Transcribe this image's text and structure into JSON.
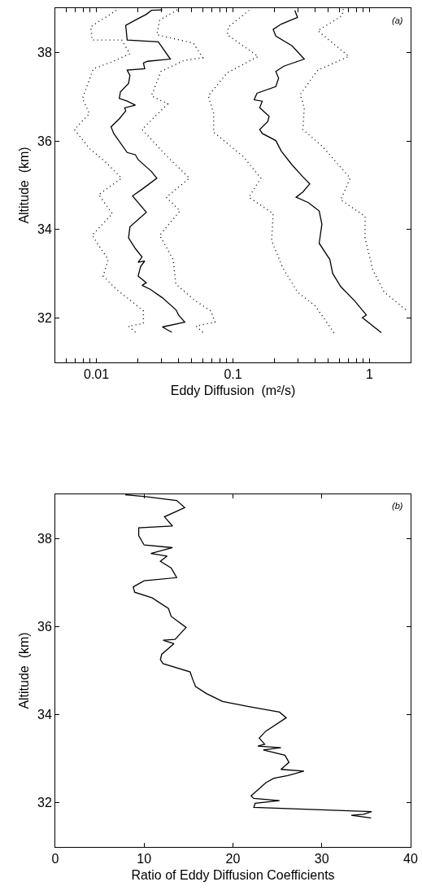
{
  "chart_data": [
    {
      "type": "line",
      "xlabel": "Eddy Diffusion  (m²/s)",
      "ylabel": "Altitude  (km)",
      "annotations": [
        "(a)"
      ],
      "log": "x",
      "grid": false,
      "marker": "none",
      "xlim": [
        0.005,
        2
      ],
      "ylim": [
        31,
        39
      ],
      "xticks": [
        {
          "value": 0.006,
          "label": null
        },
        {
          "value": 0.007,
          "label": null
        },
        {
          "value": 0.008,
          "label": null
        },
        {
          "value": 0.009,
          "label": null
        },
        0.01,
        {
          "value": 0.02,
          "label": null
        },
        {
          "value": 0.03,
          "label": null
        },
        {
          "value": 0.04,
          "label": null
        },
        {
          "value": 0.05,
          "label": null
        },
        {
          "value": 0.06,
          "label": null
        },
        {
          "value": 0.07,
          "label": null
        },
        {
          "value": 0.08,
          "label": null
        },
        {
          "value": 0.09,
          "label": null
        },
        0.1,
        {
          "value": 0.2,
          "label": null
        },
        {
          "value": 0.3,
          "label": null
        },
        {
          "value": 0.4,
          "label": null
        },
        {
          "value": 0.5,
          "label": null
        },
        {
          "value": 0.6,
          "label": null
        },
        {
          "value": 0.7,
          "label": null
        },
        {
          "value": 0.8,
          "label": null
        },
        {
          "value": 0.9,
          "label": null
        },
        1,
        {
          "value": 2,
          "label": null
        }
      ],
      "yticks": [
        32,
        34,
        36,
        38
      ],
      "series": [
        {
          "color": "#000000",
          "line_style": "solid",
          "x": [
            0.0357,
            0.0304,
            0.0444,
            0.04,
            0.0382,
            0.0304,
            0.0248,
            0.0216,
            0.0232,
            0.0202,
            0.0211,
            0.0226,
            0.0202,
            0.0216,
            0.0193,
            0.0172,
            0.0176,
            0.0232,
            0.0184,
            0.0216,
            0.0277,
            0.0253,
            0.0202,
            0.0193,
            0.0168,
            0.0134,
            0.0128,
            0.0147,
            0.0164,
            0.0161,
            0.0193,
            0.0168,
            0.0147,
            0.015,
            0.0172,
            0.0176,
            0.0168,
            0.0226,
            0.0221,
            0.0237,
            0.0348,
            0.0284,
            0.0168,
            0.0164,
            0.0193,
            0.0232,
            0.0253,
            0.0304
          ],
          "values": [
            31.68,
            31.8,
            31.91,
            32.07,
            32.19,
            32.46,
            32.65,
            32.74,
            32.8,
            32.95,
            33.17,
            33.29,
            33.26,
            33.38,
            33.57,
            33.81,
            34.06,
            34.39,
            34.76,
            34.91,
            35.16,
            35.31,
            35.58,
            35.69,
            35.74,
            36.17,
            36.32,
            36.5,
            36.68,
            36.75,
            36.81,
            36.9,
            36.96,
            37.11,
            37.3,
            37.48,
            37.6,
            37.63,
            37.76,
            37.8,
            37.85,
            38.24,
            38.28,
            38.61,
            38.73,
            38.86,
            38.95,
            38.96
          ]
        },
        {
          "color": "#000000",
          "line_style": "dotted",
          "x": [
            0.0193,
            0.0172,
            0.0221,
            0.0221,
            0.0193,
            0.014,
            0.0112,
            0.0122,
            0.0093,
            0.0131,
            0.0104,
            0.0153,
            0.0117,
            0.0089,
            0.0069,
            0.0089,
            0.0079,
            0.0095,
            0.0131,
            0.0176,
            0.0153,
            0.0093,
            0.0091,
            0.014
          ],
          "values": [
            31.68,
            31.82,
            31.88,
            32.16,
            32.31,
            32.65,
            32.95,
            33.32,
            33.87,
            34.36,
            34.79,
            35.16,
            35.52,
            35.83,
            36.26,
            36.62,
            36.96,
            37.63,
            37.79,
            37.97,
            38.28,
            38.28,
            38.58,
            38.95
          ]
        },
        {
          "color": "#000000",
          "line_style": "dotted",
          "x": [
            0.0602,
            0.0537,
            0.0739,
            0.069,
            0.0525,
            0.0382,
            0.0365,
            0.0291,
            0.0409,
            0.0325,
            0.048,
            0.0325,
            0.0216,
            0.0333,
            0.0253,
            0.0297,
            0.0438,
            0.0602,
            0.0513,
            0.0277,
            0.0291,
            0.04
          ],
          "values": [
            31.68,
            31.82,
            31.91,
            32.16,
            32.4,
            32.77,
            33.32,
            33.87,
            34.42,
            34.73,
            35.16,
            35.67,
            36.26,
            36.84,
            37.02,
            37.57,
            37.82,
            37.88,
            38.21,
            38.4,
            38.73,
            38.98
          ]
        },
        {
          "color": "#000000",
          "line_style": "solid",
          "x": [
            1.22,
            0.887,
            0.949,
            0.773,
            0.616,
            0.537,
            0.513,
            0.428,
            0.448,
            0.428,
            0.356,
            0.29,
            0.325,
            0.365,
            0.325,
            0.271,
            0.226,
            0.206,
            0.164,
            0.157,
            0.18,
            0.184,
            0.157,
            0.164,
            0.143,
            0.15,
            0.206,
            0.216,
            0.206,
            0.236,
            0.333,
            0.271,
            0.206,
            0.197,
            0.226,
            0.297,
            0.284
          ],
          "values": [
            31.67,
            32.01,
            32.07,
            32.4,
            32.71,
            33.01,
            33.32,
            33.69,
            34.12,
            34.42,
            34.61,
            34.73,
            34.85,
            35.03,
            35.19,
            35.46,
            35.77,
            36.01,
            36.17,
            36.26,
            36.44,
            36.56,
            36.75,
            36.9,
            36.93,
            37.08,
            37.23,
            37.42,
            37.57,
            37.69,
            37.85,
            38.15,
            38.37,
            38.52,
            38.64,
            38.79,
            38.95
          ]
        },
        {
          "color": "#000000",
          "line_style": "dotted",
          "x": [
            0.549,
            0.468,
            0.399,
            0.297,
            0.231,
            0.192,
            0.197,
            0.131,
            0.16,
            0.119,
            0.0722,
            0.0722,
            0.066,
            0.0907,
            0.153,
            0.0907,
            0.0929,
            0.131
          ],
          "values": [
            31.67,
            31.98,
            32.28,
            32.59,
            33.14,
            33.75,
            34.36,
            34.73,
            35.16,
            35.65,
            36.2,
            36.62,
            37.02,
            37.54,
            37.91,
            38.4,
            38.58,
            38.95
          ]
        },
        {
          "color": "#000000",
          "line_style": "dotted",
          "x": [
            1.84,
            1.28,
            1.06,
            0.928,
            0.928,
            0.616,
            0.722,
            0.448,
            0.325,
            0.333,
            0.311,
            0.418,
            0.706,
            0.418,
            0.63,
            0.643
          ],
          "values": [
            32.19,
            32.59,
            33.08,
            33.81,
            34.3,
            34.67,
            35.16,
            35.89,
            36.26,
            36.75,
            37.05,
            37.6,
            37.91,
            38.49,
            38.83,
            38.98
          ]
        }
      ]
    },
    {
      "type": "line",
      "xlabel": "Ratio of Eddy Diffusion Coefficients",
      "ylabel": "Altitude  (km)",
      "annotations": [
        "(b)"
      ],
      "grid": false,
      "marker": "none",
      "xlim": [
        0,
        40
      ],
      "ylim": [
        31,
        39
      ],
      "xticks": [
        0,
        10,
        20,
        30,
        40
      ],
      "yticks": [
        32,
        34,
        36,
        38
      ],
      "series": [
        {
          "color": "#000000",
          "line_style": "solid",
          "x": [
            35.55,
            33.32,
            34.7,
            35.61,
            22.35,
            22.5,
            25.24,
            22.35,
            22.04,
            23.72,
            24.6,
            26.16,
            27.99,
            25.4,
            26.31,
            25.85,
            23.41,
            25.4,
            22.8,
            23.57,
            22.96,
            23.72,
            26.0,
            25.24,
            21.89,
            18.84,
            17.01,
            15.79,
            15.49,
            15.18,
            12.13,
            11.83,
            11.98,
            13.35,
            12.13,
            13.48,
            14.73,
            13.05,
            12.74,
            10.91,
            8.93,
            8.78,
            10.0,
            13.66,
            13.05,
            11.83,
            12.59,
            10.76,
            13.2,
            10.0,
            9.39,
            9.39,
            13.2,
            12.29,
            14.57,
            13.66,
            10.0,
            7.87
          ],
          "values": [
            31.66,
            31.72,
            31.74,
            31.8,
            31.9,
            31.99,
            32.05,
            32.1,
            32.16,
            32.46,
            32.56,
            32.62,
            32.72,
            32.76,
            32.92,
            33.08,
            33.2,
            33.25,
            33.29,
            33.33,
            33.47,
            33.63,
            33.93,
            34.06,
            34.18,
            34.3,
            34.48,
            34.64,
            34.79,
            34.97,
            35.16,
            35.25,
            35.37,
            35.61,
            35.69,
            35.71,
            35.98,
            36.23,
            36.41,
            36.65,
            36.78,
            36.9,
            37.04,
            37.11,
            37.33,
            37.48,
            37.6,
            37.66,
            37.79,
            37.85,
            38.06,
            38.24,
            38.28,
            38.49,
            38.7,
            38.86,
            38.95,
            38.99
          ]
        }
      ]
    }
  ]
}
